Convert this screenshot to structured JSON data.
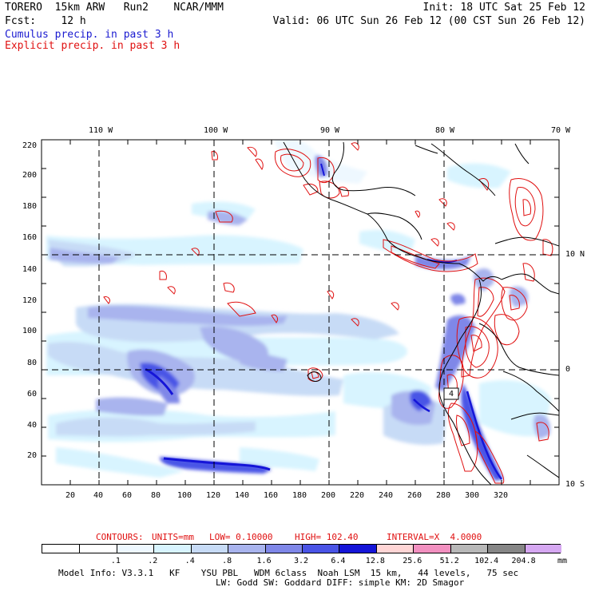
{
  "header": {
    "left_line1": "TORERO  15km ARW   Run2    NCAR/MMM",
    "right_line1": "Init: 18 UTC Sat 25 Feb 12",
    "left_line2": "Fcst:    12 h",
    "right_line2": "Valid: 06 UTC Sun 26 Feb 12 (00 CST Sun 26 Feb 12)",
    "cumulus_label": "Cumulus precip. in past 3 h",
    "explicit_label": "Explicit precip. in past 3 h"
  },
  "map": {
    "lon_labels": [
      "110 W",
      "100 W",
      "90 W",
      "80 W",
      "70 W"
    ],
    "lat_labels": [
      "10 N",
      "0",
      "10 S"
    ],
    "y_ticks": [
      "220",
      "200",
      "180",
      "160",
      "140",
      "120",
      "100",
      "80",
      "60",
      "40",
      "20"
    ],
    "x_ticks": [
      "20",
      "40",
      "60",
      "80",
      "100",
      "120",
      "140",
      "160",
      "180",
      "200",
      "220",
      "240",
      "260",
      "280",
      "300",
      "320"
    ],
    "colors": {
      "coast": "#000000",
      "contour": "#e01010",
      "grid": "#000000"
    },
    "highlight_marker": "4"
  },
  "contour_info": {
    "contours": "CONTOURS:",
    "units": "UNITS=mm",
    "low": "LOW= 0.10000",
    "high": "HIGH= 102.40",
    "interval": "INTERVAL=X  4.0000"
  },
  "colorbar": {
    "labels": [
      ".1",
      ".2",
      ".4",
      ".8",
      "1.6",
      "3.2",
      "6.4",
      "12.8",
      "25.6",
      "51.2",
      "102.4",
      "204.8"
    ],
    "units": "mm",
    "colors": [
      "#ffffff",
      "#ffffff",
      "#eef8ff",
      "#d8f4ff",
      "#c7dbf6",
      "#a9b4ee",
      "#7f87e8",
      "#4a54e6",
      "#1515d8",
      "#ffd5d5",
      "#f290c0",
      "#b8b8b8",
      "#868686",
      "#d6a8f2"
    ]
  },
  "footer": {
    "line1": "Model Info: V3.3.1   KF    YSU PBL   WDM 6class  Noah LSM  15 km,   44 levels,   75 sec",
    "line2": "LW: Godd SW: Goddard DIFF: simple KM: 2D Smagor"
  }
}
